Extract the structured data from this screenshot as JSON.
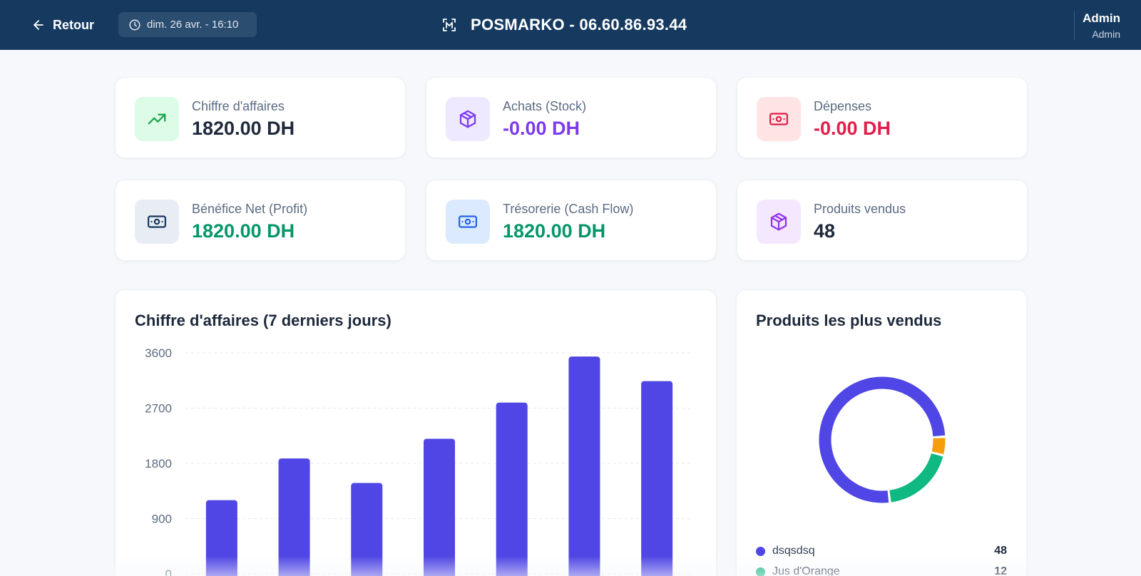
{
  "topbar": {
    "back_label": "Retour",
    "datetime": "dim. 26 avr. - 16:10",
    "store_title": "POSMARKO - 06.60.86.93.44",
    "user_name": "Admin",
    "user_role": "Admin"
  },
  "stats": [
    {
      "label": "Chiffre d'affaires",
      "value": "1820.00 DH",
      "icon": "trending-up-icon",
      "value_color": "#1e293b",
      "icon_bg": "#dcfce7",
      "icon_color": "#16a34a"
    },
    {
      "label": "Achats (Stock)",
      "value": "-0.00 DH",
      "icon": "package-icon",
      "value_color": "#7c3aed",
      "icon_bg": "#efe9ff",
      "icon_color": "#7c3aed"
    },
    {
      "label": "Dépenses",
      "value": "-0.00 DH",
      "icon": "banknote-icon",
      "value_color": "#e11d48",
      "icon_bg": "#ffe4e6",
      "icon_color": "#e11d48"
    },
    {
      "label": "Bénéfice Net (Profit)",
      "value": "1820.00 DH",
      "icon": "banknote-icon",
      "value_color": "#059669",
      "icon_bg": "#e8edf3",
      "icon_color": "#163a5f"
    },
    {
      "label": "Trésorerie (Cash Flow)",
      "value": "1820.00 DH",
      "icon": "banknote-icon",
      "value_color": "#059669",
      "icon_bg": "#dbeafe",
      "icon_color": "#2563eb"
    },
    {
      "label": "Produits vendus",
      "value": "48",
      "icon": "package-icon",
      "value_color": "#1e293b",
      "icon_bg": "#f3e8ff",
      "icon_color": "#9333ea"
    }
  ],
  "revenue_chart": {
    "title": "Chiffre d'affaires (7 derniers jours)"
  },
  "chart_data": [
    {
      "type": "bar",
      "title": "Chiffre d'affaires (7 derniers jours)",
      "xlabel": "",
      "ylabel": "",
      "ylim": [
        0,
        3600
      ],
      "yticks": [
        "0",
        "900",
        "1800",
        "2700",
        "3600"
      ],
      "categories": [
        "",
        "",
        "",
        "",
        "",
        "",
        ""
      ],
      "values": [
        1200,
        1880,
        1480,
        2200,
        2790,
        3540,
        3140
      ],
      "color": "#4f46e5",
      "grid": true
    },
    {
      "type": "pie",
      "title": "Produits les plus vendus",
      "labels": [
        "dsqsdsq",
        "Jus d'Orange",
        ""
      ],
      "values": [
        48,
        12,
        3
      ],
      "colors": [
        "#4f46e5",
        "#10b981",
        "#f59e0b"
      ],
      "donut": true
    }
  ],
  "top_products": {
    "title": "Produits les plus vendus",
    "items": [
      {
        "name": "dsqsdsq",
        "qty": "48",
        "color": "#4f46e5"
      },
      {
        "name": "Jus d'Orange",
        "qty": "12",
        "color": "#10b981"
      }
    ]
  },
  "colors": {
    "header_bg": "#163a5f",
    "accent": "#4f46e5",
    "page_bg": "#f6f8fb"
  }
}
